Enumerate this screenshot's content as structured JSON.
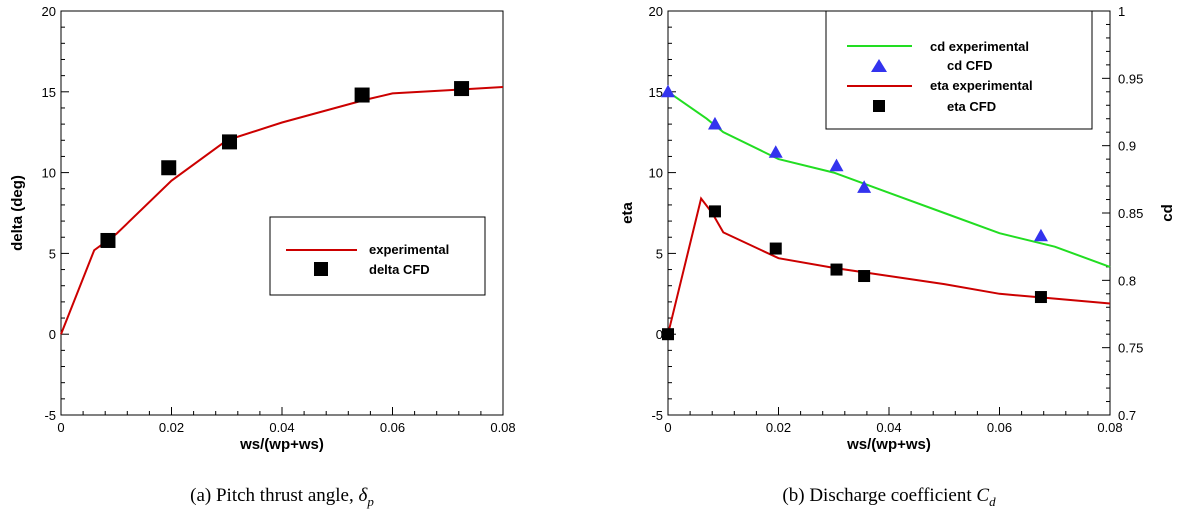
{
  "chart_data": [
    {
      "type": "line",
      "xlabel": "ws/(wp+ws)",
      "ylabel": "delta (deg)",
      "xlim": [
        0,
        0.08
      ],
      "ylim": [
        -5,
        20
      ],
      "x_ticks": [
        "0",
        "0.02",
        "0.04",
        "0.06",
        "0.08"
      ],
      "y_ticks": [
        "-5",
        "0",
        "5",
        "10",
        "15",
        "20"
      ],
      "grid": false,
      "legend_position": "right-middle",
      "series": [
        {
          "name": "experimental",
          "kind": "line",
          "color": "#cc0000",
          "x": [
            0,
            0.006,
            0.01,
            0.02,
            0.03,
            0.04,
            0.055,
            0.06,
            0.07,
            0.08
          ],
          "y": [
            0,
            5.2,
            6.2,
            9.5,
            12.0,
            13.1,
            14.5,
            14.9,
            15.1,
            15.3
          ]
        },
        {
          "name": "delta CFD",
          "kind": "scatter",
          "marker": "square",
          "color": "#000000",
          "x": [
            0.0085,
            0.0195,
            0.0305,
            0.0545,
            0.0725
          ],
          "y": [
            5.8,
            10.3,
            11.9,
            14.8,
            15.2
          ]
        }
      ],
      "caption": {
        "prefix": "(a) Pitch thrust angle, ",
        "symbol": "δ",
        "subscript": "p"
      }
    },
    {
      "type": "line",
      "xlabel": "ws/(wp+ws)",
      "ylabel": "eta",
      "y2label": "cd",
      "xlim": [
        0,
        0.08
      ],
      "ylim": [
        -5,
        20
      ],
      "y2lim": [
        0.7,
        1.0
      ],
      "x_ticks": [
        "0",
        "0.02",
        "0.04",
        "0.06",
        "0.08"
      ],
      "y_ticks": [
        "-5",
        "0",
        "5",
        "10",
        "15",
        "20"
      ],
      "y2_ticks": [
        "0.7",
        "0.75",
        "0.8",
        "0.85",
        "0.9",
        "0.95",
        "1"
      ],
      "grid": false,
      "legend_position": "top-right",
      "series": [
        {
          "name": "cd experimental",
          "kind": "line",
          "axis": "right",
          "color": "#22dd22",
          "x": [
            0,
            0.007,
            0.01,
            0.02,
            0.03,
            0.04,
            0.05,
            0.06,
            0.07,
            0.08
          ],
          "y": [
            0.94,
            0.92,
            0.91,
            0.89,
            0.88,
            0.865,
            0.85,
            0.835,
            0.825,
            0.81
          ]
        },
        {
          "name": "cd CFD",
          "kind": "scatter",
          "marker": "triangle",
          "axis": "right",
          "color": "#3333ee",
          "x": [
            0,
            0.0085,
            0.0195,
            0.0305,
            0.0355,
            0.0675
          ],
          "y": [
            0.94,
            0.916,
            0.895,
            0.885,
            0.869,
            0.833
          ]
        },
        {
          "name": "eta experimental",
          "kind": "line",
          "axis": "left",
          "color": "#cc0000",
          "x": [
            0,
            0.006,
            0.008,
            0.01,
            0.02,
            0.03,
            0.04,
            0.05,
            0.06,
            0.07,
            0.08
          ],
          "y": [
            0,
            8.4,
            7.5,
            6.3,
            4.7,
            4.1,
            3.6,
            3.1,
            2.5,
            2.2,
            1.9
          ]
        },
        {
          "name": "eta CFD",
          "kind": "scatter",
          "marker": "square",
          "axis": "left",
          "color": "#000000",
          "x": [
            0,
            0.0085,
            0.0195,
            0.0305,
            0.0355,
            0.0675
          ],
          "y": [
            0,
            7.6,
            5.3,
            4.0,
            3.6,
            2.3
          ]
        }
      ],
      "caption": {
        "prefix": "(b) Discharge coefficient ",
        "symbol": "C",
        "subscript": "d"
      }
    }
  ]
}
